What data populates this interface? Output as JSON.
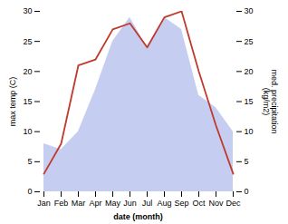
{
  "chart_data": {
    "type": "line",
    "xlabel": "date (month)",
    "ylabel": "max temp (C)",
    "y2label": "med. precipitation\n(kg/m2)",
    "categories": [
      "Jan",
      "Feb",
      "Mar",
      "Apr",
      "May",
      "Jun",
      "Jul",
      "Aug",
      "Sep",
      "Oct",
      "Nov",
      "Dec"
    ],
    "series": [
      {
        "type": "area",
        "axis": "y2",
        "color": "#c5cef0",
        "values": [
          8,
          7,
          10,
          17,
          25,
          29,
          24,
          29,
          27,
          16,
          14,
          10
        ]
      },
      {
        "type": "line",
        "color": "#c0392b",
        "values": [
          3,
          8,
          21,
          22,
          27,
          28,
          24,
          29,
          30,
          20,
          11,
          3
        ]
      }
    ],
    "ylim": [
      0,
      30
    ],
    "yticks": [
      0,
      5,
      10,
      15,
      20,
      25,
      30
    ],
    "y2lim": [
      0,
      30
    ],
    "y2ticks": [
      0,
      5,
      10,
      15,
      20,
      25,
      30
    ]
  }
}
